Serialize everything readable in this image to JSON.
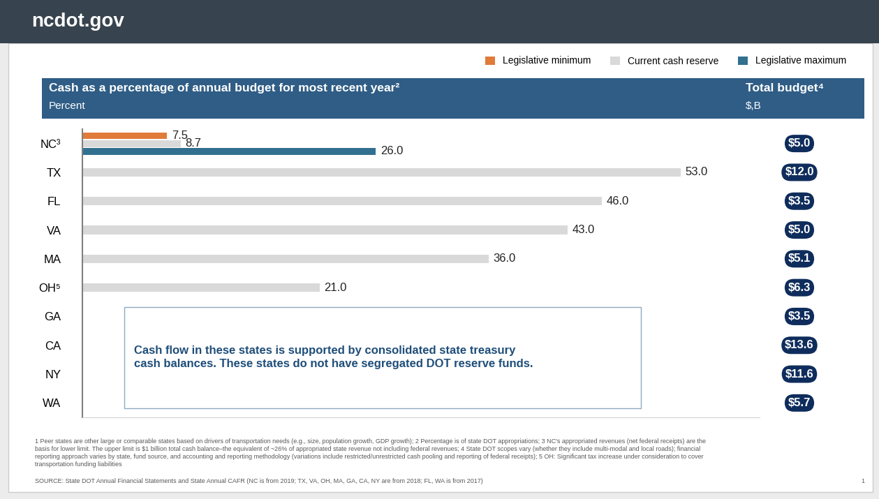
{
  "header": "ncdot.gov",
  "chart_data": {
    "type": "bar",
    "orientation": "horizontal",
    "title": "Cash as a percentage of annual budget for most recent year²",
    "subtitle": "Percent",
    "categories": [
      "NC³",
      "TX",
      "FL",
      "VA",
      "MA",
      "OH⁵",
      "GA",
      "CA",
      "NY",
      "WA"
    ],
    "series": [
      {
        "name": "Legislative minimum",
        "color": "#e07b39",
        "values": [
          7.5,
          null,
          null,
          null,
          null,
          null,
          null,
          null,
          null,
          null
        ]
      },
      {
        "name": "Current cash reserve",
        "color": "#d9d9d9",
        "values": [
          8.7,
          53.0,
          46.0,
          43.0,
          36.0,
          21.0,
          null,
          null,
          null,
          null
        ]
      },
      {
        "name": "Legislative maximum",
        "color": "#31708f",
        "values": [
          26.0,
          null,
          null,
          null,
          null,
          null,
          null,
          null,
          null,
          null
        ]
      }
    ],
    "xlim": [
      0,
      60
    ],
    "tick_labels": "y",
    "data_labels": true,
    "grid": false,
    "legend": "upper right",
    "annotation": "Cash flow in these states is supported by consolidated state treasury cash balances. These states do not have segregated DOT reserve funds.",
    "total_budget": {
      "title": "Total budget⁴",
      "subtitle": "$,B",
      "values": [
        5.0,
        12.0,
        3.5,
        5.0,
        5.1,
        6.3,
        3.5,
        13.6,
        11.6,
        5.7
      ],
      "value_labels": [
        "$5.0",
        "$12.0",
        "$3.5",
        "$5.0",
        "$5.1",
        "$6.3",
        "$3.5",
        "$13.6",
        "$11.6",
        "$5.7"
      ]
    }
  },
  "footnotes": "1 Peer states are other large or comparable states based on drivers of transportation needs (e.g., size, population growth, GDP growth); 2 Percentage is of state DOT appropriations; 3 NC's appropriated revenues (net federal receipts) are the basis for lower limit. The upper limit is $1 billion total cash balance–the equivalent of ~26% of appropriated state revenue not including federal revenues; 4 State DOT scopes vary (whether they include multi-modal and local roads); financial reporting approach varies by state, fund source, and accounting and reporting methodology (variations include restricted/unrestricted cash pooling and reporting of federal receipts); 5 OH: Significant tax increase under consideration to cover transportation funding liabilities",
  "source": "SOURCE: State DOT Annual Financial Statements and State Annual CAFR (NC is from 2019; TX, VA, OH, MA, GA, CA, NY are from 2018; FL, WA is from 2017)",
  "page": "1"
}
